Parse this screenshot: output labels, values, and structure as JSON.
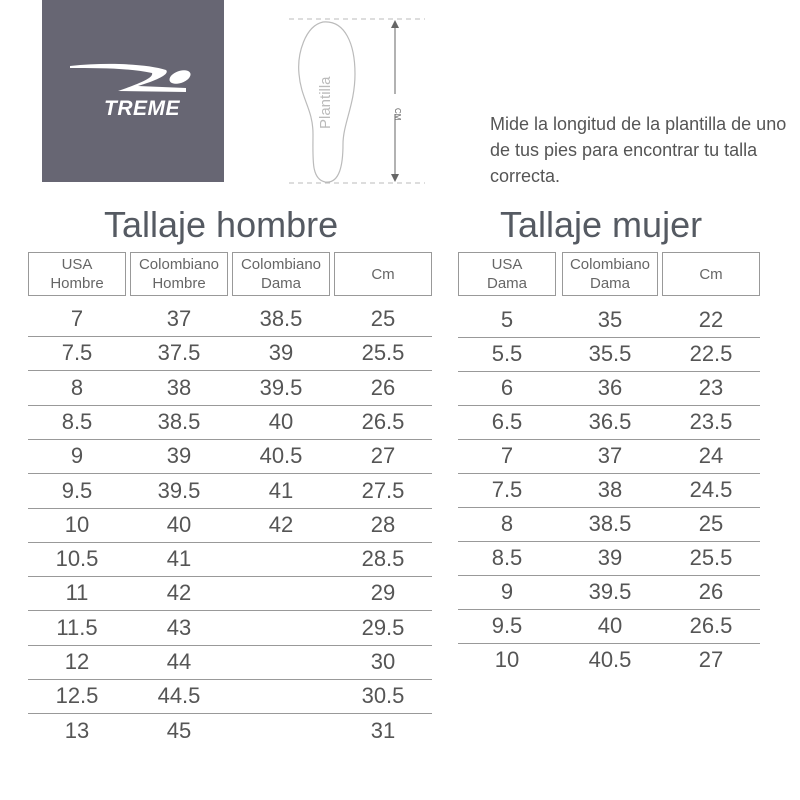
{
  "logo": {
    "text": "TREME"
  },
  "diagram": {
    "insole_label": "Plantilla",
    "measure_label": "CM"
  },
  "instructions": "Mide la longitud de la plantilla de uno de tus pies para encontrar tu talla correcta.",
  "men": {
    "title": "Tallaje hombre",
    "headers": [
      [
        "USA",
        "Hombre"
      ],
      [
        "Colombiano",
        "Hombre"
      ],
      [
        "Colombiano",
        "Dama"
      ],
      [
        "Cm",
        ""
      ]
    ],
    "rows": [
      [
        "7",
        "37",
        "38.5",
        "25"
      ],
      [
        "7.5",
        "37.5",
        "39",
        "25.5"
      ],
      [
        "8",
        "38",
        "39.5",
        "26"
      ],
      [
        "8.5",
        "38.5",
        "40",
        "26.5"
      ],
      [
        "9",
        "39",
        "40.5",
        "27"
      ],
      [
        "9.5",
        "39.5",
        "41",
        "27.5"
      ],
      [
        "10",
        "40",
        "42",
        "28"
      ],
      [
        "10.5",
        "41",
        "",
        "28.5"
      ],
      [
        "11",
        "42",
        "",
        "29"
      ],
      [
        "11.5",
        "43",
        "",
        "29.5"
      ],
      [
        "12",
        "44",
        "",
        "30"
      ],
      [
        "12.5",
        "44.5",
        "",
        "30.5"
      ],
      [
        "13",
        "45",
        "",
        "31"
      ]
    ]
  },
  "women": {
    "title": "Tallaje mujer",
    "headers": [
      [
        "USA",
        "Dama"
      ],
      [
        "Colombiano",
        "Dama"
      ],
      [
        "Cm",
        ""
      ]
    ],
    "rows": [
      [
        "5",
        "35",
        "22"
      ],
      [
        "5.5",
        "35.5",
        "22.5"
      ],
      [
        "6",
        "36",
        "23"
      ],
      [
        "6.5",
        "36.5",
        "23.5"
      ],
      [
        "7",
        "37",
        "24"
      ],
      [
        "7.5",
        "38",
        "24.5"
      ],
      [
        "8",
        "38.5",
        "25"
      ],
      [
        "8.5",
        "39",
        "25.5"
      ],
      [
        "9",
        "39.5",
        "26"
      ],
      [
        "9.5",
        "40",
        "26.5"
      ],
      [
        "10",
        "40.5",
        "27"
      ]
    ]
  }
}
